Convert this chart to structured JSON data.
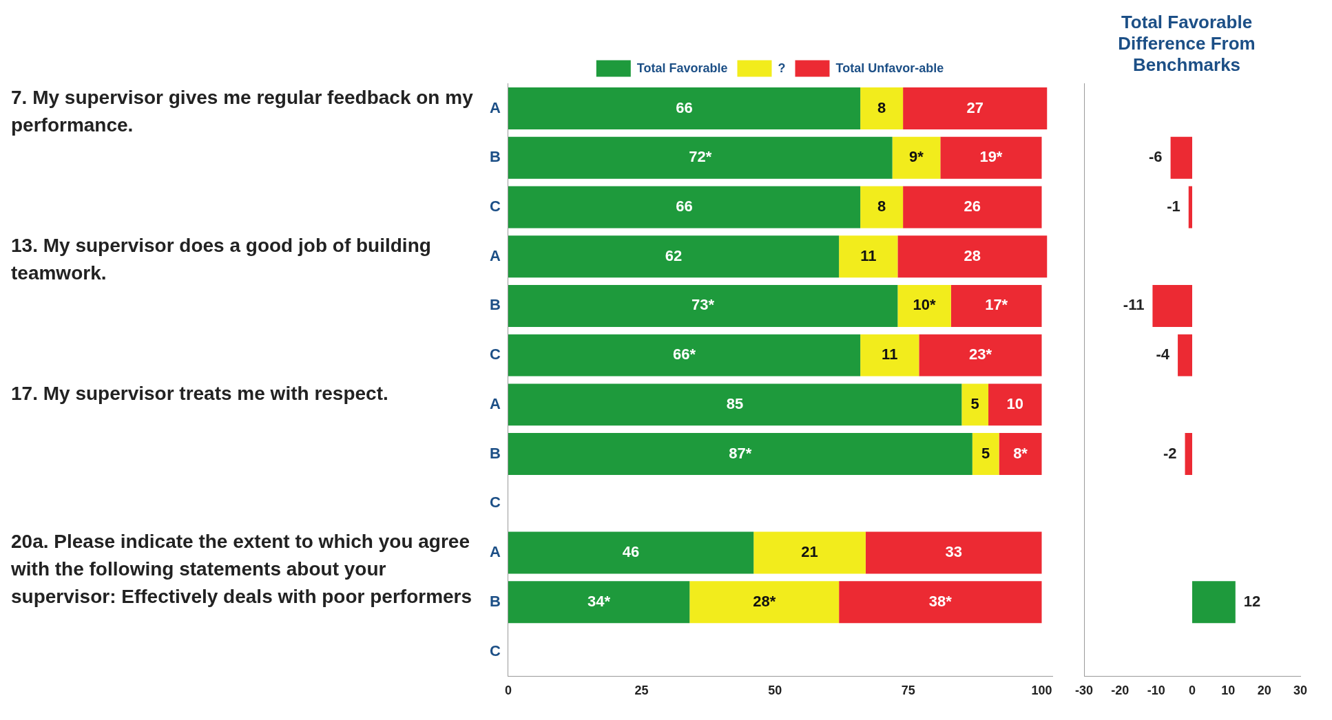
{
  "chart_data": [
    {
      "type": "bar",
      "orientation": "horizontal",
      "stacked": true,
      "categories": [
        "A",
        "B",
        "C",
        "A",
        "B",
        "C",
        "A",
        "B",
        "C",
        "A",
        "B",
        "C"
      ],
      "series": [
        {
          "name": "Total Favorable",
          "color": "#1e9a3c",
          "values": [
            66,
            72,
            66,
            62,
            73,
            66,
            85,
            87,
            null,
            46,
            34,
            null
          ],
          "value_labels": [
            "66",
            "72*",
            "66",
            "62",
            "73*",
            "66*",
            "85",
            "87*",
            null,
            "46",
            "34*",
            null
          ]
        },
        {
          "name": "?",
          "color": "#f2ec1c",
          "values": [
            8,
            9,
            8,
            11,
            10,
            11,
            5,
            5,
            null,
            21,
            28,
            null
          ],
          "value_labels": [
            "8",
            "9*",
            "8",
            "11",
            "10*",
            "11",
            "5",
            "5",
            null,
            "21",
            "28*",
            null
          ]
        },
        {
          "name": "Total Unfavor-able",
          "color": "#ec2a33",
          "values": [
            27,
            19,
            26,
            28,
            17,
            23,
            10,
            8,
            null,
            33,
            38,
            null
          ],
          "value_labels": [
            "27",
            "19*",
            "26",
            "28",
            "17*",
            "23*",
            "10",
            "8*",
            null,
            "33",
            "38*",
            null
          ]
        }
      ],
      "xlim": [
        0,
        102
      ],
      "xticks": [
        0,
        25,
        50,
        75,
        100
      ],
      "legend": "top",
      "annotations": [
        "7. My supervisor gives me regular feedback on my performance.",
        "13. My supervisor does a good job of building teamwork.",
        "17. My supervisor treats me with respect.",
        "20a. Please indicate the extent to which you agree with the following statements about your supervisor: Effectively deals with poor performers"
      ]
    },
    {
      "type": "bar",
      "orientation": "horizontal",
      "title": "Total Favorable Difference From Benchmarks",
      "categories": [
        null,
        null,
        null,
        null,
        null,
        null,
        null,
        null,
        null,
        null,
        null,
        null
      ],
      "values": [
        null,
        -6,
        -1,
        null,
        -11,
        -4,
        null,
        -2,
        null,
        null,
        12,
        null
      ],
      "colors": [
        "#ec2a33",
        "#ec2a33",
        "#ec2a33",
        "#ec2a33",
        "#ec2a33",
        "#ec2a33",
        "#ec2a33",
        "#ec2a33",
        "#ec2a33",
        "#ec2a33",
        "#1e9a3c",
        "#ec2a33"
      ],
      "data_labels": true,
      "xlim": [
        -30,
        30
      ],
      "xticks": [
        -30,
        -20,
        -10,
        0,
        10,
        20,
        30
      ],
      "tick_labels": "x"
    }
  ]
}
